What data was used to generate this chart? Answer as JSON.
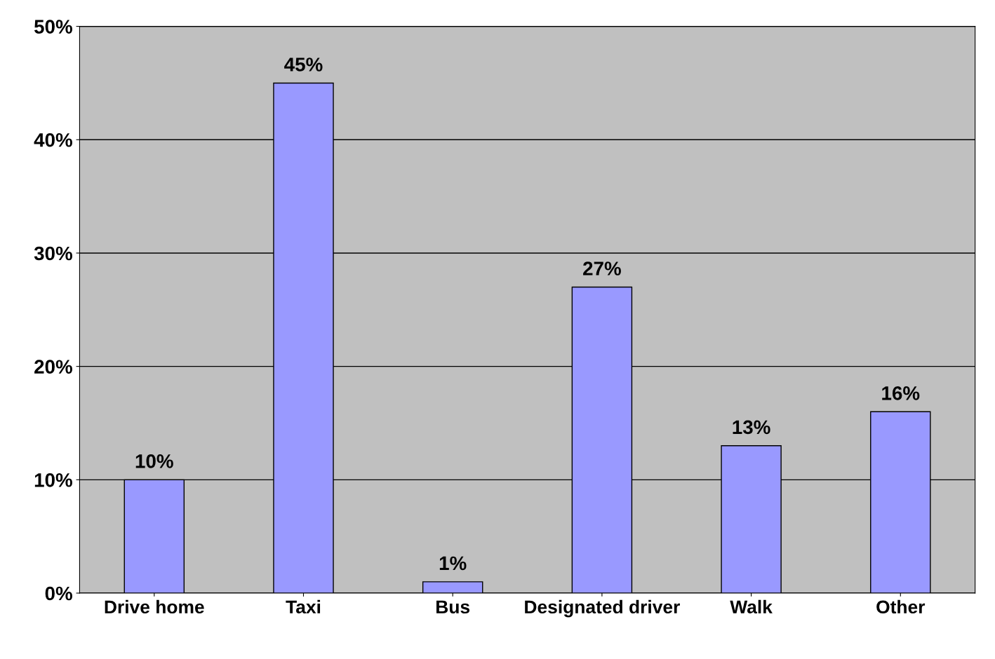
{
  "chart_data": {
    "type": "bar",
    "categories": [
      "Drive home",
      "Taxi",
      "Bus",
      "Designated driver",
      "Walk",
      "Other"
    ],
    "values": [
      10,
      45,
      1,
      27,
      13,
      16
    ],
    "value_labels": [
      "10%",
      "45%",
      "1%",
      "27%",
      "13%",
      "16%"
    ],
    "color": "#9999ff",
    "ylim": [
      0,
      50
    ],
    "yticks": [
      {
        "value": 0,
        "label": "0%"
      },
      {
        "value": 10,
        "label": "10%"
      },
      {
        "value": 20,
        "label": "20%"
      },
      {
        "value": 30,
        "label": "30%"
      },
      {
        "value": 40,
        "label": "40%"
      },
      {
        "value": 50,
        "label": "50%"
      }
    ],
    "grid": "y"
  }
}
